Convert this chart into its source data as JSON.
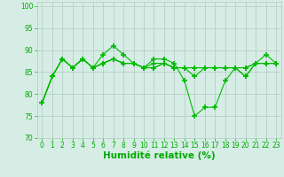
{
  "x": [
    0,
    1,
    2,
    3,
    4,
    5,
    6,
    7,
    8,
    9,
    10,
    11,
    12,
    13,
    14,
    15,
    16,
    17,
    18,
    19,
    20,
    21,
    22,
    23
  ],
  "lines": [
    [
      78,
      84,
      88,
      86,
      88,
      86,
      89,
      91,
      89,
      87,
      86,
      88,
      88,
      87,
      83,
      75,
      77,
      77,
      83,
      86,
      84,
      87,
      89,
      87
    ],
    [
      78,
      84,
      88,
      86,
      88,
      86,
      87,
      88,
      87,
      87,
      86,
      86,
      87,
      86,
      86,
      84,
      86,
      86,
      86,
      86,
      84,
      87,
      87,
      87
    ],
    [
      78,
      84,
      88,
      86,
      88,
      86,
      87,
      88,
      87,
      87,
      86,
      86,
      87,
      86,
      86,
      86,
      86,
      86,
      86,
      86,
      86,
      87,
      87,
      87
    ],
    [
      78,
      84,
      88,
      86,
      88,
      86,
      87,
      88,
      87,
      87,
      86,
      87,
      87,
      86,
      86,
      86,
      86,
      86,
      86,
      86,
      86,
      87,
      87,
      87
    ]
  ],
  "line_color": "#00bb00",
  "marker": "+",
  "markersize": 4,
  "markeredgewidth": 1.2,
  "linewidth": 0.8,
  "xlabel": "Humidité relative (%)",
  "ylim": [
    70,
    101
  ],
  "yticks": [
    70,
    75,
    80,
    85,
    90,
    95,
    100
  ],
  "xticks": [
    0,
    1,
    2,
    3,
    4,
    5,
    6,
    7,
    8,
    9,
    10,
    11,
    12,
    13,
    14,
    15,
    16,
    17,
    18,
    19,
    20,
    21,
    22,
    23
  ],
  "bg_color": "#d5ede5",
  "grid_color": "#b0c8c0",
  "text_color": "#00aa00",
  "tick_fontsize": 5.5,
  "xlabel_fontsize": 7.5
}
